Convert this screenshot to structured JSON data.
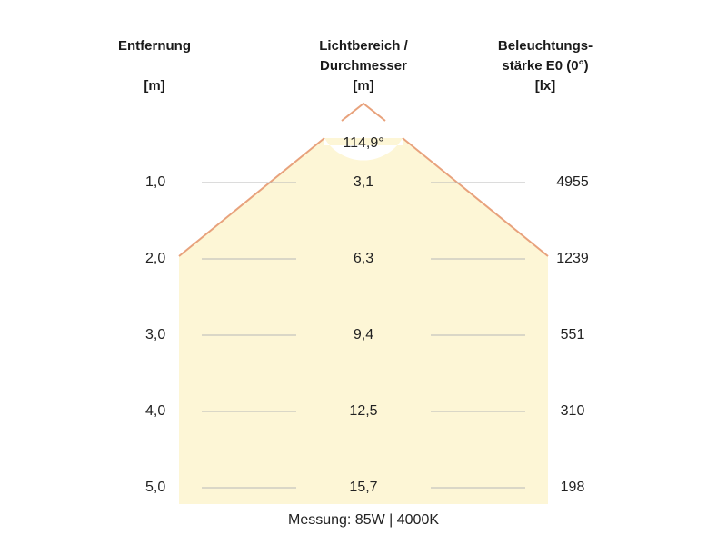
{
  "headers": {
    "distance": {
      "line1": "Entfernung",
      "unit": "[m]"
    },
    "diameter": {
      "line1": "Lichtbereich /",
      "line2": "Durchmesser",
      "unit": "[m]"
    },
    "illuminance": {
      "line1": "Beleuchtungs-",
      "line2": "stärke E0 (0°)",
      "unit": "[lx]"
    }
  },
  "beam_angle": "114,9°",
  "rows": [
    {
      "distance": "1,0",
      "diameter": "3,1",
      "illuminance": "4955"
    },
    {
      "distance": "2,0",
      "diameter": "6,3",
      "illuminance": "1239"
    },
    {
      "distance": "3,0",
      "diameter": "9,4",
      "illuminance": "551"
    },
    {
      "distance": "4,0",
      "diameter": "12,5",
      "illuminance": "310"
    },
    {
      "distance": "5,0",
      "diameter": "15,7",
      "illuminance": "198"
    }
  ],
  "caption": "Messung: 85W | 4000K",
  "colors": {
    "beam_fill": "#fdf6d6",
    "beam_edge": "#e8a27c",
    "row_line": "#b8b8b8"
  }
}
